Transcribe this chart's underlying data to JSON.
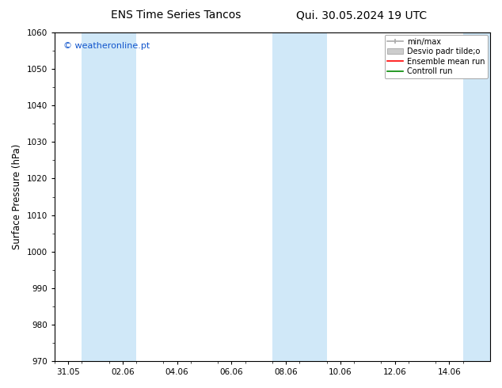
{
  "title_left": "ENS Time Series Tancos",
  "title_right": "Qui. 30.05.2024 19 UTC",
  "ylabel": "Surface Pressure (hPa)",
  "ylim": [
    970,
    1060
  ],
  "yticks": [
    970,
    980,
    990,
    1000,
    1010,
    1020,
    1030,
    1040,
    1050,
    1060
  ],
  "xtick_labels": [
    "31.05",
    "02.06",
    "04.06",
    "06.06",
    "08.06",
    "10.06",
    "12.06",
    "14.06"
  ],
  "xtick_positions": [
    0,
    2,
    4,
    6,
    8,
    10,
    12,
    14
  ],
  "xlim": [
    -0.5,
    15.5
  ],
  "shaded_bands": [
    {
      "x_start": 0.5,
      "x_end": 1.5,
      "color": "#d0e8f8"
    },
    {
      "x_start": 1.5,
      "x_end": 2.5,
      "color": "#d0e8f8"
    },
    {
      "x_start": 7.5,
      "x_end": 8.5,
      "color": "#d0e8f8"
    },
    {
      "x_start": 8.5,
      "x_end": 9.5,
      "color": "#d0e8f8"
    },
    {
      "x_start": 14.5,
      "x_end": 15.5,
      "color": "#d0e8f8"
    }
  ],
  "watermark_text": "© weatheronline.pt",
  "watermark_color": "#1155cc",
  "legend_labels": [
    "min/max",
    "Desvio padr tilde;o",
    "Ensemble mean run",
    "Controll run"
  ],
  "legend_colors_line": [
    "#aaaaaa",
    "#cccccc",
    "#ff0000",
    "#008800"
  ],
  "bg_color": "#ffffff",
  "plot_bg_color": "#ffffff",
  "title_fontsize": 10,
  "tick_fontsize": 7.5,
  "ylabel_fontsize": 8.5,
  "legend_fontsize": 7,
  "watermark_fontsize": 8
}
